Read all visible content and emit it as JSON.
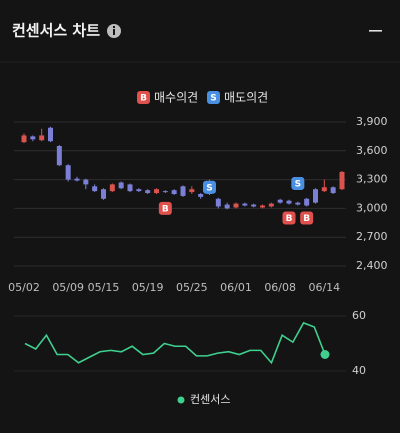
{
  "header": {
    "title": "컨센서스 차트"
  },
  "chart_data": [
    {
      "type": "candlestick",
      "categories": [
        "05/02",
        null,
        null,
        null,
        null,
        "05/09",
        null,
        null,
        null,
        "05/15",
        null,
        null,
        null,
        null,
        "05/19",
        null,
        null,
        null,
        null,
        "05/25",
        null,
        null,
        null,
        null,
        "06/01",
        null,
        null,
        null,
        null,
        "06/08",
        null,
        null,
        null,
        null,
        "06/14",
        null,
        null
      ],
      "open": [
        3690,
        3750,
        3710,
        3840,
        3650,
        3450,
        3310,
        3300,
        3230,
        3200,
        3180,
        3270,
        3250,
        3200,
        3190,
        3160,
        3180,
        3190,
        3230,
        3170,
        3150,
        3250,
        3100,
        3040,
        3010,
        3050,
        3040,
        3010,
        3020,
        3090,
        3080,
        3060,
        3100,
        3200,
        3180,
        3220,
        3200
      ],
      "high": [
        3780,
        3760,
        3830,
        3850,
        3660,
        3460,
        3330,
        3310,
        3250,
        3210,
        3260,
        3280,
        3260,
        3210,
        3200,
        3210,
        3190,
        3200,
        3240,
        3230,
        3160,
        3300,
        3110,
        3060,
        3060,
        3060,
        3050,
        3040,
        3060,
        3100,
        3090,
        3070,
        3110,
        3210,
        3300,
        3230,
        3390
      ],
      "low": [
        3680,
        3700,
        3700,
        3690,
        3440,
        3280,
        3280,
        3200,
        3170,
        3090,
        3170,
        3200,
        3170,
        3170,
        3150,
        3150,
        3160,
        3140,
        3120,
        3150,
        3100,
        3140,
        3000,
        2990,
        3000,
        3020,
        3010,
        3000,
        3010,
        3050,
        3040,
        3030,
        3020,
        3050,
        3170,
        3150,
        3190
      ],
      "close": [
        3760,
        3720,
        3760,
        3700,
        3450,
        3300,
        3290,
        3250,
        3180,
        3100,
        3250,
        3210,
        3180,
        3180,
        3160,
        3200,
        3170,
        3150,
        3130,
        3200,
        3120,
        3150,
        3020,
        3000,
        3050,
        3030,
        3020,
        3030,
        3050,
        3060,
        3050,
        3040,
        3030,
        3060,
        3220,
        3160,
        3380
      ],
      "up_color": "#d9534f",
      "down_color": "#7b7fd6",
      "series": [
        {
          "name": "매수의견",
          "label": "B",
          "color": "#e0504c",
          "values": [
            null,
            null,
            null,
            null,
            null,
            null,
            null,
            null,
            null,
            null,
            null,
            null,
            null,
            null,
            null,
            null,
            3000,
            null,
            null,
            null,
            null,
            null,
            null,
            null,
            null,
            null,
            null,
            null,
            null,
            null,
            2900,
            null,
            2900,
            null,
            null,
            null,
            null
          ]
        },
        {
          "name": "매도의견",
          "label": "S",
          "color": "#4a90e2",
          "values": [
            null,
            null,
            null,
            null,
            null,
            null,
            null,
            null,
            null,
            null,
            null,
            null,
            null,
            null,
            null,
            null,
            null,
            null,
            null,
            null,
            null,
            3220,
            null,
            null,
            null,
            null,
            null,
            null,
            null,
            null,
            null,
            3260,
            null,
            null,
            null,
            null,
            null
          ]
        }
      ],
      "ylim": [
        2300,
        4000
      ],
      "yticks": [
        {
          "value": 2400,
          "label": "2,400"
        },
        {
          "value": 2700,
          "label": "2,700"
        },
        {
          "value": 3000,
          "label": "3,000"
        },
        {
          "value": 3300,
          "label": "3,300"
        },
        {
          "value": 3600,
          "label": "3,600"
        },
        {
          "value": 3900,
          "label": "3,900"
        }
      ],
      "grid": true
    },
    {
      "type": "line",
      "categories": [
        null,
        null,
        null,
        null,
        null,
        null,
        null,
        null,
        null,
        null,
        null,
        null,
        null,
        null,
        null,
        null,
        null,
        null,
        null,
        null,
        null,
        null,
        null,
        null,
        null,
        null,
        null,
        null,
        null
      ],
      "series": [
        {
          "name": "컨센서스",
          "color": "#3fd08f",
          "values": [
            50,
            48,
            53,
            46,
            46,
            43,
            45,
            47,
            47.5,
            47,
            49,
            46,
            46.5,
            50,
            49,
            49,
            45.5,
            45.5,
            46.5,
            47,
            46,
            47.5,
            47.5,
            43,
            53,
            50.5,
            57.5,
            56,
            46
          ]
        }
      ],
      "ylim": [
        34,
        64
      ],
      "yticks": [
        40,
        60
      ],
      "grid": true
    }
  ]
}
